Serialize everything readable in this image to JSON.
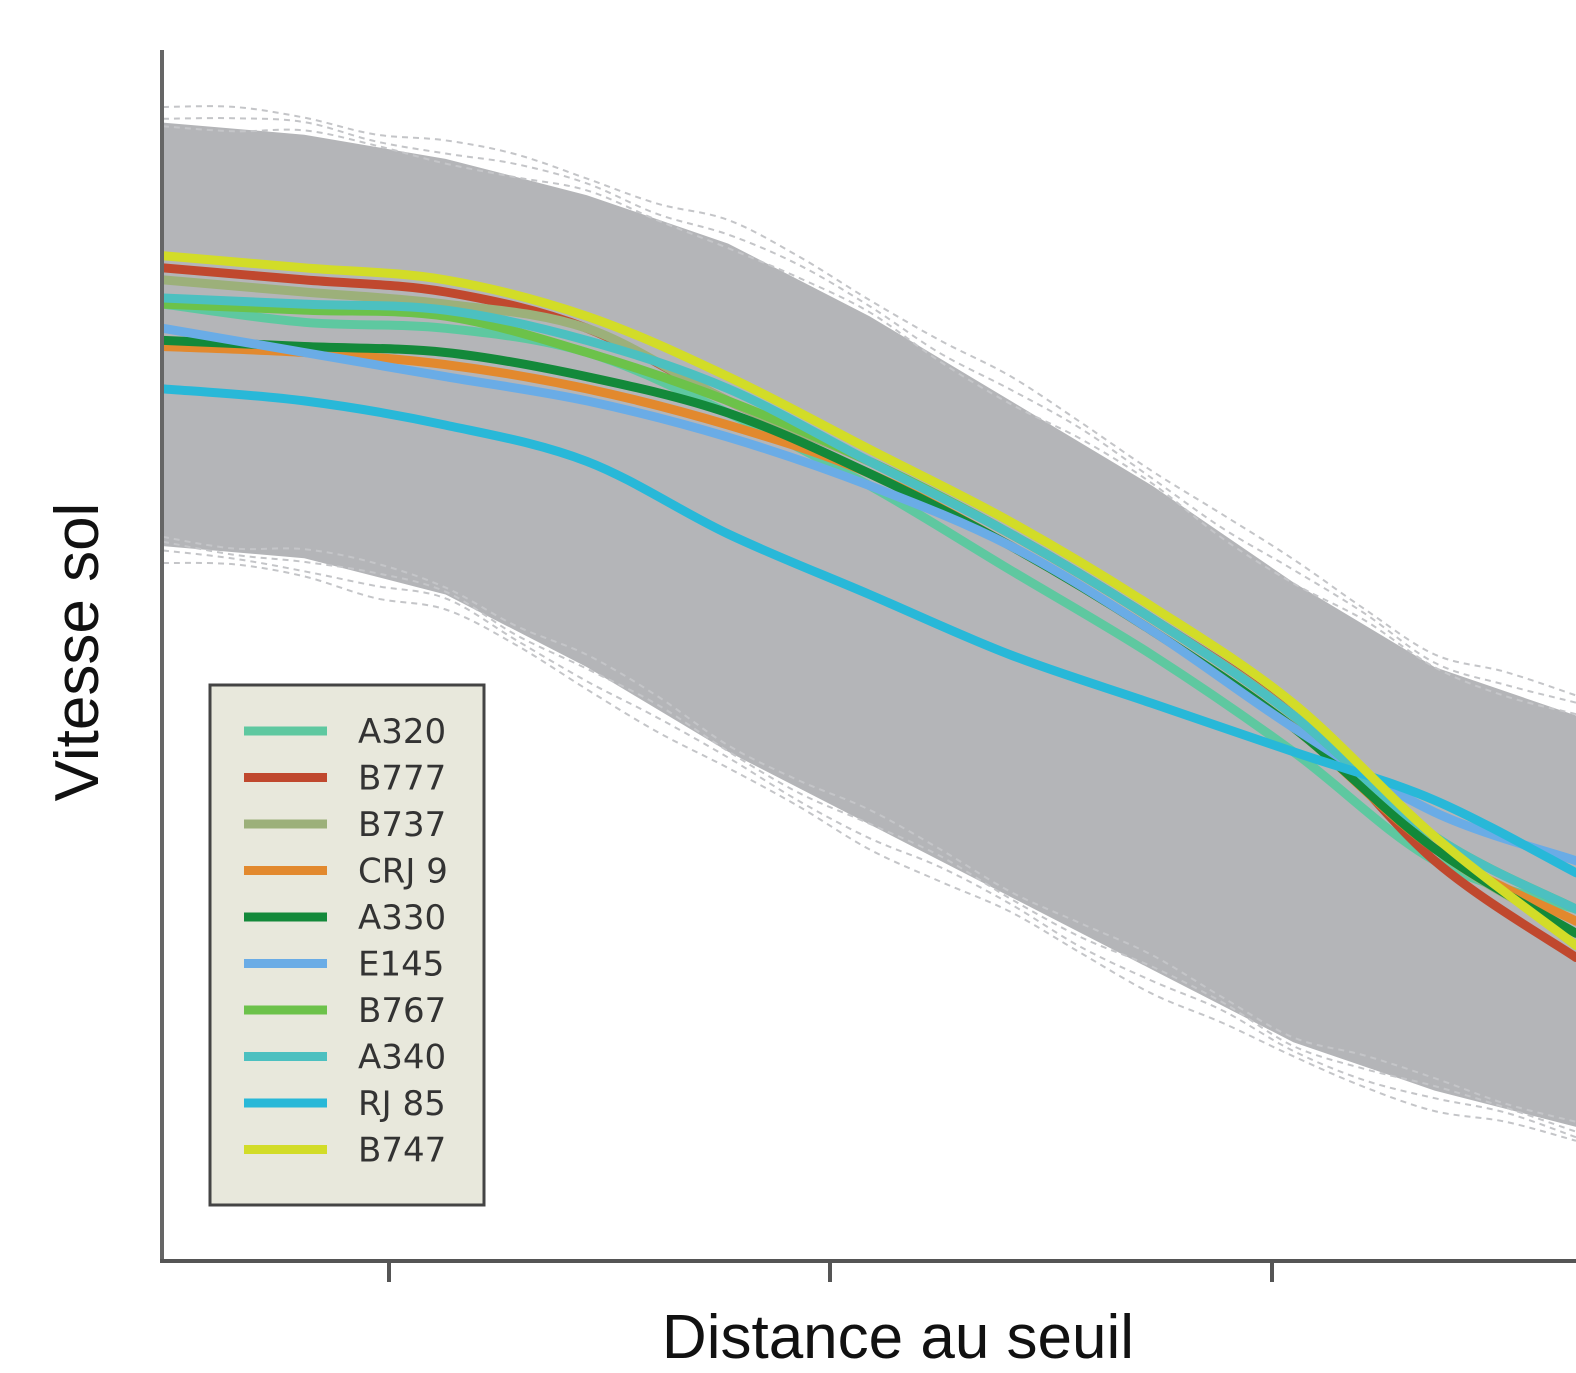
{
  "chart_data": {
    "type": "line",
    "title": "",
    "xlabel": "Distance au seuil",
    "ylabel": "Vitesse sol",
    "xlim": [
      0,
      1
    ],
    "ylim": [
      0,
      1
    ],
    "x_ticks": [
      "",
      "",
      ""
    ],
    "grid": false,
    "legend": "lower-left",
    "background_traces": {
      "color": "#b4b5b8",
      "upper": [
        [
          0.0,
          0.94
        ],
        [
          0.1,
          0.93
        ],
        [
          0.2,
          0.91
        ],
        [
          0.3,
          0.88
        ],
        [
          0.4,
          0.84
        ],
        [
          0.5,
          0.78
        ],
        [
          0.6,
          0.71
        ],
        [
          0.7,
          0.64
        ],
        [
          0.8,
          0.56
        ],
        [
          0.9,
          0.49
        ],
        [
          1.0,
          0.45
        ]
      ],
      "lower": [
        [
          0.0,
          0.59
        ],
        [
          0.1,
          0.58
        ],
        [
          0.2,
          0.55
        ],
        [
          0.3,
          0.49
        ],
        [
          0.4,
          0.42
        ],
        [
          0.5,
          0.36
        ],
        [
          0.6,
          0.3
        ],
        [
          0.7,
          0.24
        ],
        [
          0.8,
          0.18
        ],
        [
          0.9,
          0.14
        ],
        [
          1.0,
          0.11
        ]
      ]
    },
    "series": [
      {
        "name": "A320",
        "color": "#5ec8a0",
        "points": [
          [
            0.0,
            0.79
          ],
          [
            0.1,
            0.775
          ],
          [
            0.2,
            0.77
          ],
          [
            0.3,
            0.75
          ],
          [
            0.4,
            0.7
          ],
          [
            0.5,
            0.64
          ],
          [
            0.6,
            0.57
          ],
          [
            0.7,
            0.5
          ],
          [
            0.8,
            0.42
          ],
          [
            0.9,
            0.33
          ],
          [
            1.0,
            0.29
          ]
        ]
      },
      {
        "name": "B777",
        "color": "#c0482e",
        "points": [
          [
            0.0,
            0.82
          ],
          [
            0.1,
            0.81
          ],
          [
            0.2,
            0.8
          ],
          [
            0.3,
            0.77
          ],
          [
            0.4,
            0.71
          ],
          [
            0.5,
            0.66
          ],
          [
            0.6,
            0.6
          ],
          [
            0.7,
            0.53
          ],
          [
            0.8,
            0.45
          ],
          [
            0.9,
            0.33
          ],
          [
            1.0,
            0.25
          ]
        ]
      },
      {
        "name": "B737",
        "color": "#9cb07a",
        "points": [
          [
            0.0,
            0.81
          ],
          [
            0.1,
            0.8
          ],
          [
            0.2,
            0.79
          ],
          [
            0.3,
            0.77
          ],
          [
            0.4,
            0.71
          ],
          [
            0.5,
            0.66
          ],
          [
            0.6,
            0.6
          ],
          [
            0.7,
            0.53
          ],
          [
            0.8,
            0.45
          ],
          [
            0.9,
            0.34
          ],
          [
            1.0,
            0.27
          ]
        ]
      },
      {
        "name": "CRJ 9",
        "color": "#e2892e",
        "points": [
          [
            0.0,
            0.755
          ],
          [
            0.1,
            0.75
          ],
          [
            0.2,
            0.74
          ],
          [
            0.3,
            0.72
          ],
          [
            0.4,
            0.69
          ],
          [
            0.5,
            0.65
          ],
          [
            0.6,
            0.59
          ],
          [
            0.7,
            0.52
          ],
          [
            0.8,
            0.44
          ],
          [
            0.9,
            0.34
          ],
          [
            1.0,
            0.28
          ]
        ]
      },
      {
        "name": "A330",
        "color": "#13893a",
        "points": [
          [
            0.0,
            0.76
          ],
          [
            0.1,
            0.755
          ],
          [
            0.2,
            0.75
          ],
          [
            0.3,
            0.73
          ],
          [
            0.4,
            0.7
          ],
          [
            0.5,
            0.65
          ],
          [
            0.6,
            0.59
          ],
          [
            0.7,
            0.52
          ],
          [
            0.8,
            0.44
          ],
          [
            0.9,
            0.34
          ],
          [
            1.0,
            0.27
          ]
        ]
      },
      {
        "name": "E145",
        "color": "#6aace6",
        "points": [
          [
            0.0,
            0.77
          ],
          [
            0.1,
            0.75
          ],
          [
            0.2,
            0.73
          ],
          [
            0.3,
            0.71
          ],
          [
            0.4,
            0.68
          ],
          [
            0.5,
            0.64
          ],
          [
            0.6,
            0.59
          ],
          [
            0.7,
            0.52
          ],
          [
            0.8,
            0.44
          ],
          [
            0.9,
            0.37
          ],
          [
            1.0,
            0.33
          ]
        ]
      },
      {
        "name": "B767",
        "color": "#6cc24a",
        "points": [
          [
            0.0,
            0.79
          ],
          [
            0.1,
            0.785
          ],
          [
            0.2,
            0.78
          ],
          [
            0.3,
            0.75
          ],
          [
            0.4,
            0.71
          ],
          [
            0.5,
            0.66
          ],
          [
            0.6,
            0.6
          ],
          [
            0.7,
            0.53
          ],
          [
            0.8,
            0.45
          ],
          [
            0.9,
            0.35
          ],
          [
            1.0,
            0.29
          ]
        ]
      },
      {
        "name": "A340",
        "color": "#4cc0c0",
        "points": [
          [
            0.0,
            0.795
          ],
          [
            0.1,
            0.79
          ],
          [
            0.2,
            0.785
          ],
          [
            0.3,
            0.76
          ],
          [
            0.4,
            0.72
          ],
          [
            0.5,
            0.66
          ],
          [
            0.6,
            0.6
          ],
          [
            0.7,
            0.53
          ],
          [
            0.8,
            0.45
          ],
          [
            0.9,
            0.35
          ],
          [
            1.0,
            0.29
          ]
        ]
      },
      {
        "name": "RJ 85",
        "color": "#28b8d8",
        "points": [
          [
            0.0,
            0.72
          ],
          [
            0.1,
            0.71
          ],
          [
            0.2,
            0.69
          ],
          [
            0.3,
            0.66
          ],
          [
            0.4,
            0.6
          ],
          [
            0.5,
            0.55
          ],
          [
            0.6,
            0.5
          ],
          [
            0.7,
            0.46
          ],
          [
            0.8,
            0.42
          ],
          [
            0.9,
            0.38
          ],
          [
            1.0,
            0.32
          ]
        ]
      },
      {
        "name": "B747",
        "color": "#d2dc28",
        "points": [
          [
            0.0,
            0.83
          ],
          [
            0.1,
            0.82
          ],
          [
            0.2,
            0.81
          ],
          [
            0.3,
            0.78
          ],
          [
            0.4,
            0.73
          ],
          [
            0.5,
            0.67
          ],
          [
            0.6,
            0.61
          ],
          [
            0.7,
            0.54
          ],
          [
            0.8,
            0.46
          ],
          [
            0.9,
            0.35
          ],
          [
            1.0,
            0.26
          ]
        ]
      }
    ]
  }
}
